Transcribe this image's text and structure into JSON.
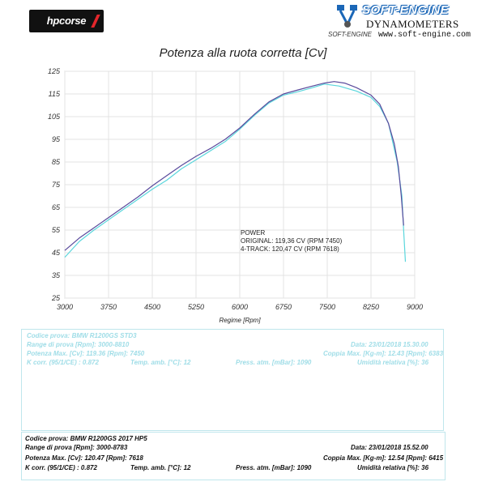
{
  "logos": {
    "left": "hpcorse",
    "right_brand": "SOFT-ENGINE",
    "right_sub": "SOFT-ENGINE",
    "right_title": "DYNAMOMETERS",
    "right_url": "www.soft-engine.com"
  },
  "chart_data": {
    "type": "line",
    "title": "Potenza alla ruota corretta [Cv]",
    "xlabel": "Regime [Rpm]",
    "ylabel": "",
    "xlim": [
      3000,
      9000
    ],
    "ylim": [
      25,
      125
    ],
    "xticks": [
      "3000",
      "3750",
      "4500",
      "5250",
      "6000",
      "6750",
      "7500",
      "8250",
      "9000"
    ],
    "yticks": [
      "125",
      "115",
      "105",
      "95",
      "85",
      "75",
      "65",
      "55",
      "45",
      "35",
      "25"
    ],
    "grid": true,
    "colors": {
      "original": "#5ad6dc",
      "four_track": "#5a4a9c"
    },
    "annotation": [
      "POWER",
      "ORIGINAL: 119,36 CV (RPM 7450)",
      "4-TRACK: 120,47 CV (RPM 7618)"
    ],
    "series": [
      {
        "key": "original",
        "x": [
          3000,
          3250,
          3500,
          3750,
          4000,
          4250,
          4500,
          4750,
          5000,
          5250,
          5500,
          5750,
          6000,
          6250,
          6500,
          6750,
          7000,
          7250,
          7450,
          7700,
          8000,
          8250,
          8400,
          8550,
          8700,
          8780,
          8810,
          8840
        ],
        "y": [
          43,
          50,
          55,
          59.5,
          64,
          68.5,
          73,
          77,
          82,
          86,
          90,
          94,
          99.5,
          105.5,
          111,
          114.5,
          116,
          117.8,
          119.36,
          118.5,
          116.3,
          113.5,
          109.5,
          102,
          85,
          70,
          55,
          41
        ]
      },
      {
        "key": "four_track",
        "x": [
          3000,
          3250,
          3500,
          3750,
          4000,
          4250,
          4500,
          4750,
          5000,
          5250,
          5500,
          5750,
          6000,
          6250,
          6500,
          6750,
          7000,
          7250,
          7450,
          7618,
          7800,
          8000,
          8250,
          8400,
          8550,
          8650,
          8720,
          8770,
          8810
        ],
        "y": [
          46,
          51.5,
          56,
          60.5,
          65,
          69.5,
          74.5,
          79,
          83.5,
          87.5,
          91,
          95,
          100,
          106,
          111.5,
          115,
          116.8,
          118.5,
          119.8,
          120.47,
          119.8,
          117.8,
          114.5,
          110.5,
          102,
          93,
          83,
          70,
          57
        ]
      }
    ]
  },
  "test_original": {
    "codice": "Codice prova: BMW R1200GS STD3",
    "range": "Range di prova [Rpm]: 3000-8810",
    "data": "Data: 23/01/2018  15.30.00",
    "potenza": "Potenza Max. [Cv]: 119.36  [Rpm]: 7450",
    "coppia": "Coppia Max. [Kg-m]: 12.43  [Rpm]: 6383",
    "k": "K corr. (95/1/CE) : 0.872",
    "temp": "Temp. amb. [°C]: 12",
    "press": "Press. atm. [mBar]: 1090",
    "umid": "Umidità relativa [%]: 36"
  },
  "test_new": {
    "codice": "Codice prova: BMW R1200GS 2017 HP5",
    "range": "Range di prova [Rpm]: 3000-8783",
    "data": "Data: 23/01/2018  15.52.00",
    "potenza": "Potenza Max. [Cv]: 120.47  [Rpm]: 7618",
    "coppia": "Coppia Max. [Kg-m]: 12.54  [Rpm]: 6415",
    "k": "K corr. (95/1/CE) : 0.872",
    "temp": "Temp. amb. [°C]: 12",
    "press": "Press. atm. [mBar]: 1090",
    "umid": "Umidità relativa [%]: 36"
  }
}
